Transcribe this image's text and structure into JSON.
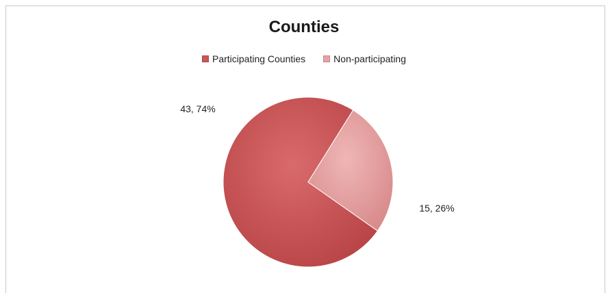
{
  "chart_data": {
    "type": "pie",
    "title": "Counties",
    "legend_position": "top",
    "slices": [
      {
        "label": "Participating Counties",
        "value": 43,
        "percent": 74,
        "data_label": "43, 74%",
        "color": "#cb5658"
      },
      {
        "label": "Non-participating",
        "value": 15,
        "percent": 26,
        "data_label": "15, 26%",
        "color": "#e8a1a1"
      }
    ]
  }
}
